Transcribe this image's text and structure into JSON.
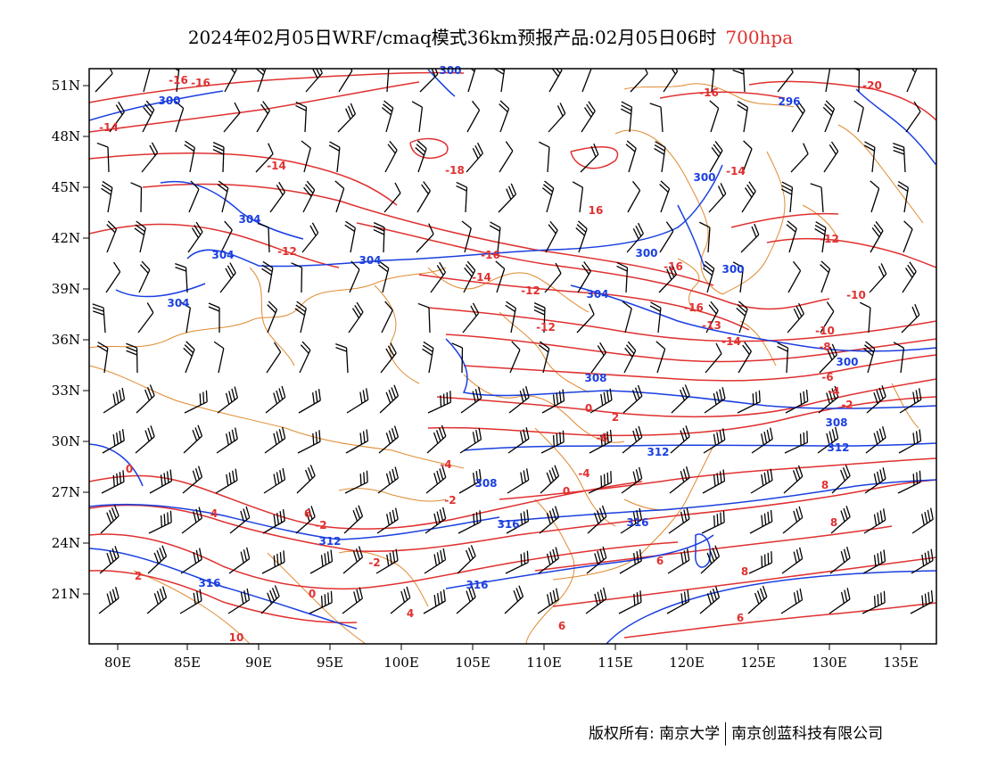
{
  "header": {
    "title": "2024年02月05日WRF/cmaq模式36km预报产品:02月05日06时",
    "level": "700hpa"
  },
  "map": {
    "lon_labels": [
      "80E",
      "85E",
      "90E",
      "95E",
      "100E",
      "105E",
      "110E",
      "115E",
      "120E",
      "125E",
      "130E",
      "135E"
    ],
    "lat_labels": [
      "51N",
      "48N",
      "45N",
      "42N",
      "39N",
      "36N",
      "33N",
      "30N",
      "27N",
      "24N",
      "21N"
    ],
    "colors": {
      "temperature": "#e03030",
      "geopotential": "#1a3fe0",
      "coastline": "#e08a30",
      "wind": "#000000"
    },
    "temperature_labels": [
      "-16",
      "-16",
      "-14",
      "-14",
      "-18",
      "-16",
      "-14",
      "-20",
      "-16",
      "-12",
      "-16",
      "-14",
      "-12",
      "-10",
      "-16",
      "-14",
      "-12",
      "-13",
      "-10",
      "-8",
      "-6",
      "-4",
      "-2",
      "0",
      "2",
      "-6",
      "-4",
      "-2",
      "-4",
      "0",
      "2",
      "4",
      "6",
      "0",
      "-2",
      "-2",
      "0",
      "4",
      "6",
      "6",
      "8",
      "8",
      "8",
      "6",
      "10",
      "16",
      "-12"
    ],
    "height_labels": [
      "300",
      "300",
      "296",
      "304",
      "304",
      "304",
      "304",
      "300",
      "300",
      "300",
      "304",
      "308",
      "300",
      "308",
      "312",
      "308",
      "312",
      "316",
      "312",
      "316",
      "316",
      "316"
    ]
  },
  "footer": {
    "copyright": "版权所有: 南京大学",
    "company": "南京创蓝科技有限公司"
  }
}
